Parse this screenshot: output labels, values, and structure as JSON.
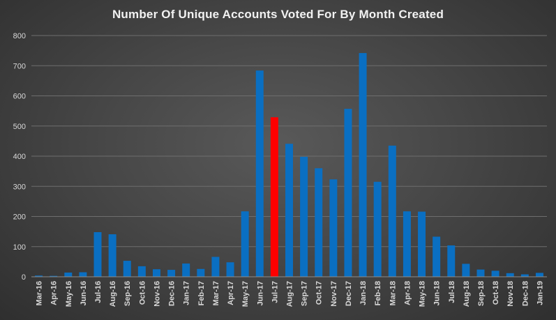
{
  "chart_data": {
    "type": "bar",
    "title": "Number Of Unique Accounts Voted For By Month Created",
    "xlabel": "",
    "ylabel": "",
    "ylim": [
      0,
      800
    ],
    "yticks": [
      0,
      100,
      200,
      300,
      400,
      500,
      600,
      700,
      800
    ],
    "grid": true,
    "legend": "none",
    "categories": [
      "Mar-16",
      "Apr-16",
      "May-16",
      "Jun-16",
      "Jul-16",
      "Aug-16",
      "Sep-16",
      "Oct-16",
      "Nov-16",
      "Dec-16",
      "Jan-17",
      "Feb-17",
      "Mar-17",
      "Apr-17",
      "May-17",
      "Jun-17",
      "Jul-17",
      "Aug-17",
      "Sep-17",
      "Oct-17",
      "Nov-17",
      "Dec-17",
      "Jan-18",
      "Feb-18",
      "Mar-18",
      "Apr-18",
      "May-18",
      "Jun-18",
      "Jul-18",
      "Aug-18",
      "Sep-18",
      "Oct-18",
      "Nov-18",
      "Dec-18",
      "Jan-19"
    ],
    "values": [
      4,
      3,
      14,
      15,
      148,
      141,
      53,
      35,
      25,
      23,
      44,
      26,
      66,
      48,
      217,
      684,
      529,
      441,
      398,
      360,
      323,
      557,
      742,
      315,
      435,
      217,
      216,
      133,
      104,
      43,
      24,
      20,
      12,
      8,
      13
    ],
    "highlight_index": 16,
    "colors": {
      "bar": "#0a6fc2",
      "highlight": "#ff0000",
      "grid": "#6e6e6e",
      "axis": "#8c8c8c",
      "text": "#d9d9d9",
      "title": "#f2f2f2"
    }
  }
}
